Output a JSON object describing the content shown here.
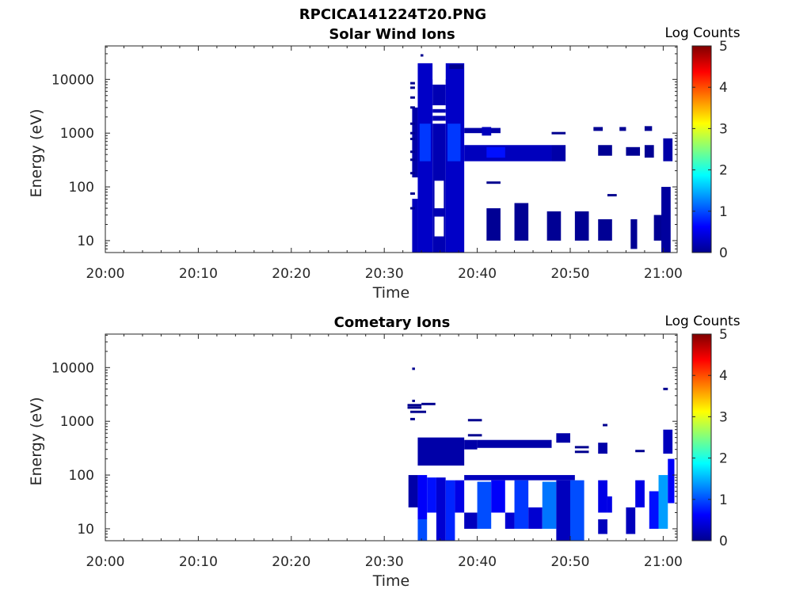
{
  "figure_title": "RPCICA141224T20.PNG",
  "chart_data": [
    {
      "type": "heatmap",
      "title": "Solar Wind Ions",
      "xlabel": "Time",
      "ylabel": "Energy (eV)",
      "x_ticks": [
        "20:00",
        "20:10",
        "20:20",
        "20:30",
        "20:40",
        "20:50",
        "21:00"
      ],
      "x_range_minutes": [
        0,
        61.5
      ],
      "y_scale": "log",
      "y_range_eV": [
        6,
        42000
      ],
      "y_ticks": [
        10,
        100,
        1000,
        10000
      ],
      "y_tick_labels": [
        "10",
        "100",
        "1000",
        "10000"
      ],
      "colorbar": {
        "label": "Log Counts",
        "range": [
          0,
          5
        ],
        "ticks": [
          "0",
          "1",
          "2",
          "3",
          "4",
          "5"
        ],
        "colormap": "jet"
      },
      "blocks": [
        {
          "t": [
            33.0,
            33.6
          ],
          "e": [
            6,
            60
          ],
          "v": 0.3
        },
        {
          "t": [
            33.0,
            33.6
          ],
          "e": [
            150,
            3000
          ],
          "v": 0.2
        },
        {
          "t": [
            33.6,
            35.2
          ],
          "e": [
            6,
            20000
          ],
          "v": 0.35
        },
        {
          "t": [
            33.8,
            35.0
          ],
          "e": [
            300,
            1500
          ],
          "v": 0.9
        },
        {
          "t": [
            35.2,
            36.6
          ],
          "e": [
            6,
            8000
          ],
          "v": 0.25
        },
        {
          "t": [
            36.6,
            38.6
          ],
          "e": [
            6,
            20000
          ],
          "v": 0.35
        },
        {
          "t": [
            36.8,
            38.2
          ],
          "e": [
            300,
            1500
          ],
          "v": 0.9
        },
        {
          "t": [
            38.6,
            42.5
          ],
          "e": [
            1000,
            1250
          ],
          "v": 0.2
        },
        {
          "t": [
            40.5,
            41.5
          ],
          "e": [
            900,
            1300
          ],
          "v": 0.3
        },
        {
          "t": [
            38.6,
            48.0
          ],
          "e": [
            300,
            600
          ],
          "v": 0.3
        },
        {
          "t": [
            41.0,
            43.0
          ],
          "e": [
            350,
            550
          ],
          "v": 0.7
        },
        {
          "t": [
            48.0,
            49.5
          ],
          "e": [
            300,
            600
          ],
          "v": 0.2
        },
        {
          "t": [
            41.0,
            42.5
          ],
          "e": [
            10,
            40
          ],
          "v": 0.1
        },
        {
          "t": [
            44.0,
            45.5
          ],
          "e": [
            10,
            50
          ],
          "v": 0.1
        },
        {
          "t": [
            47.5,
            49.0
          ],
          "e": [
            10,
            35
          ],
          "v": 0.1
        },
        {
          "t": [
            50.5,
            52.0
          ],
          "e": [
            10,
            35
          ],
          "v": 0.1
        },
        {
          "t": [
            53.0,
            54.5
          ],
          "e": [
            10,
            25
          ],
          "v": 0.1
        },
        {
          "t": [
            56.5,
            57.2
          ],
          "e": [
            7,
            25
          ],
          "v": 0.1
        },
        {
          "t": [
            59.0,
            60.0
          ],
          "e": [
            10,
            30
          ],
          "v": 0.1
        },
        {
          "t": [
            59.8,
            60.8
          ],
          "e": [
            6,
            100
          ],
          "v": 0.15
        },
        {
          "t": [
            52.5,
            53.5
          ],
          "e": [
            1100,
            1300
          ],
          "v": 0.1
        },
        {
          "t": [
            55.3,
            56.0
          ],
          "e": [
            1100,
            1300
          ],
          "v": 0.1
        },
        {
          "t": [
            58.0,
            58.8
          ],
          "e": [
            1100,
            1350
          ],
          "v": 0.1
        },
        {
          "t": [
            53.0,
            54.5
          ],
          "e": [
            380,
            600
          ],
          "v": 0.1
        },
        {
          "t": [
            56.0,
            57.5
          ],
          "e": [
            380,
            550
          ],
          "v": 0.1
        },
        {
          "t": [
            58.0,
            59.0
          ],
          "e": [
            350,
            600
          ],
          "v": 0.1
        },
        {
          "t": [
            60.0,
            61.0
          ],
          "e": [
            300,
            800
          ],
          "v": 0.2
        }
      ],
      "lines": [
        {
          "t": [
            32.8,
            33.3
          ],
          "e": 8500
        },
        {
          "t": [
            32.8,
            33.3
          ],
          "e": 7000
        },
        {
          "t": [
            32.8,
            33.3
          ],
          "e": 4600
        },
        {
          "t": [
            32.8,
            33.3
          ],
          "e": 3000
        },
        {
          "t": [
            32.8,
            33.3
          ],
          "e": 1500
        },
        {
          "t": [
            32.8,
            33.3
          ],
          "e": 1000
        },
        {
          "t": [
            32.8,
            33.3
          ],
          "e": 780
        },
        {
          "t": [
            32.8,
            33.3
          ],
          "e": 450
        },
        {
          "t": [
            32.8,
            33.3
          ],
          "e": 320
        },
        {
          "t": [
            32.8,
            33.3
          ],
          "e": 180
        },
        {
          "t": [
            32.8,
            33.3
          ],
          "e": 75
        },
        {
          "t": [
            32.8,
            33.3
          ],
          "e": 40
        },
        {
          "t": [
            33.9,
            34.2
          ],
          "e": 28000
        },
        {
          "t": [
            37.0,
            38.5
          ],
          "e": 18000
        },
        {
          "t": [
            37.0,
            38.5
          ],
          "e": 16500
        },
        {
          "t": [
            41.0,
            42.5
          ],
          "e": 120
        },
        {
          "t": [
            48.0,
            49.5
          ],
          "e": 1000
        },
        {
          "t": [
            54.0,
            55.0
          ],
          "e": 70
        }
      ],
      "gaps": [
        {
          "t": [
            35.2,
            36.6
          ],
          "e": [
            10000,
            20000
          ]
        },
        {
          "t": [
            35.2,
            36.6
          ],
          "e": [
            2800,
            3300
          ]
        },
        {
          "t": [
            35.2,
            36.6
          ],
          "e": [
            2100,
            2400
          ]
        },
        {
          "t": [
            35.2,
            36.6
          ],
          "e": [
            1500,
            1700
          ]
        },
        {
          "t": [
            35.4,
            36.4
          ],
          "e": [
            40,
            130
          ]
        },
        {
          "t": [
            35.4,
            36.4
          ],
          "e": [
            12,
            28
          ]
        }
      ]
    },
    {
      "type": "heatmap",
      "title": "Cometary Ions",
      "xlabel": "Time",
      "ylabel": "Energy (eV)",
      "x_ticks": [
        "20:00",
        "20:10",
        "20:20",
        "20:30",
        "20:40",
        "20:50",
        "21:00"
      ],
      "x_range_minutes": [
        0,
        61.5
      ],
      "y_scale": "log",
      "y_range_eV": [
        6,
        42000
      ],
      "y_ticks": [
        10,
        100,
        1000,
        10000
      ],
      "y_tick_labels": [
        "10",
        "100",
        "1000",
        "10000"
      ],
      "colorbar": {
        "label": "Log Counts",
        "range": [
          0,
          5
        ],
        "ticks": [
          "0",
          "1",
          "2",
          "3",
          "4",
          "5"
        ],
        "colormap": "jet"
      },
      "blocks": [
        {
          "t": [
            32.6,
            33.6
          ],
          "e": [
            25,
            100
          ],
          "v": 0.2
        },
        {
          "t": [
            33.6,
            34.6
          ],
          "e": [
            15,
            100
          ],
          "v": 0.6
        },
        {
          "t": [
            33.6,
            34.6
          ],
          "e": [
            6,
            15
          ],
          "v": 1.0
        },
        {
          "t": [
            34.6,
            35.6
          ],
          "e": [
            20,
            90
          ],
          "v": 0.7
        },
        {
          "t": [
            35.6,
            36.6
          ],
          "e": [
            6,
            90
          ],
          "v": 0.4
        },
        {
          "t": [
            36.6,
            37.6
          ],
          "e": [
            6,
            80
          ],
          "v": 0.8
        },
        {
          "t": [
            37.6,
            38.6
          ],
          "e": [
            20,
            80
          ],
          "v": 0.5
        },
        {
          "t": [
            33.6,
            38.6
          ],
          "e": [
            150,
            500
          ],
          "v": 0.2
        },
        {
          "t": [
            38.6,
            40.0
          ],
          "e": [
            300,
            450
          ],
          "v": 0.2
        },
        {
          "t": [
            40.0,
            48.0
          ],
          "e": [
            320,
            450
          ],
          "v": 0.2
        },
        {
          "t": [
            38.6,
            50.5
          ],
          "e": [
            80,
            100
          ],
          "v": 0.3
        },
        {
          "t": [
            38.6,
            40.0
          ],
          "e": [
            10,
            20
          ],
          "v": 0.3
        },
        {
          "t": [
            40.0,
            41.5
          ],
          "e": [
            10,
            75
          ],
          "v": 1.0
        },
        {
          "t": [
            41.5,
            43.0
          ],
          "e": [
            20,
            80
          ],
          "v": 0.6
        },
        {
          "t": [
            43.0,
            44.0
          ],
          "e": [
            10,
            20
          ],
          "v": 0.4
        },
        {
          "t": [
            44.0,
            45.5
          ],
          "e": [
            10,
            80
          ],
          "v": 0.9
        },
        {
          "t": [
            45.5,
            47.0
          ],
          "e": [
            10,
            25
          ],
          "v": 0.4
        },
        {
          "t": [
            47.0,
            48.5
          ],
          "e": [
            10,
            75
          ],
          "v": 1.2
        },
        {
          "t": [
            48.5,
            50.0
          ],
          "e": [
            6,
            80
          ],
          "v": 0.3
        },
        {
          "t": [
            50.0,
            51.5
          ],
          "e": [
            6,
            80
          ],
          "v": 1.0
        },
        {
          "t": [
            48.5,
            50.0
          ],
          "e": [
            400,
            600
          ],
          "v": 0.2
        },
        {
          "t": [
            53.0,
            54.0
          ],
          "e": [
            20,
            80
          ],
          "v": 0.5
        },
        {
          "t": [
            53.0,
            54.0
          ],
          "e": [
            8,
            15
          ],
          "v": 0.3
        },
        {
          "t": [
            54.0,
            54.5
          ],
          "e": [
            20,
            40
          ],
          "v": 0.5
        },
        {
          "t": [
            56.0,
            57.0
          ],
          "e": [
            8,
            25
          ],
          "v": 0.3
        },
        {
          "t": [
            57.0,
            58.0
          ],
          "e": [
            25,
            80
          ],
          "v": 0.5
        },
        {
          "t": [
            58.5,
            59.5
          ],
          "e": [
            10,
            50
          ],
          "v": 0.7
        },
        {
          "t": [
            59.5,
            60.5
          ],
          "e": [
            10,
            100
          ],
          "v": 1.4
        },
        {
          "t": [
            60.5,
            61.2
          ],
          "e": [
            30,
            200
          ],
          "v": 0.6
        },
        {
          "t": [
            53.0,
            54.0
          ],
          "e": [
            250,
            400
          ],
          "v": 0.2
        },
        {
          "t": [
            60.0,
            61.0
          ],
          "e": [
            250,
            700
          ],
          "v": 0.3
        }
      ],
      "lines": [
        {
          "t": [
            33.0,
            33.3
          ],
          "e": 9500
        },
        {
          "t": [
            33.0,
            33.3
          ],
          "e": 2400
        },
        {
          "t": [
            32.5,
            34.0
          ],
          "e": 2000
        },
        {
          "t": [
            32.5,
            34.0
          ],
          "e": 1800
        },
        {
          "t": [
            32.8,
            34.5
          ],
          "e": 1500
        },
        {
          "t": [
            32.8,
            33.3
          ],
          "e": 1100
        },
        {
          "t": [
            34.0,
            35.5
          ],
          "e": 2100
        },
        {
          "t": [
            39.0,
            40.5
          ],
          "e": 1050
        },
        {
          "t": [
            39.0,
            40.5
          ],
          "e": 550
        },
        {
          "t": [
            50.5,
            52.0
          ],
          "e": 330
        },
        {
          "t": [
            50.5,
            52.0
          ],
          "e": 270
        },
        {
          "t": [
            53.5,
            54.0
          ],
          "e": 850
        },
        {
          "t": [
            57.0,
            58.0
          ],
          "e": 280
        },
        {
          "t": [
            60.0,
            60.5
          ],
          "e": 4000
        }
      ],
      "gaps": []
    }
  ]
}
